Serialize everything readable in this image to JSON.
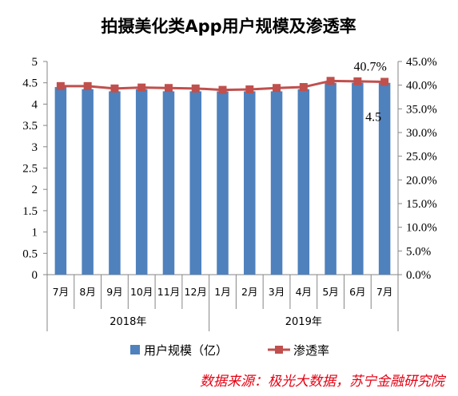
{
  "title": "拍摄美化类App用户规模及渗透率",
  "source": "数据来源：极光大数据，苏宁金融研究院",
  "colors": {
    "bar": "#4f81bd",
    "line": "#c0504d",
    "axis": "#868686",
    "source": "#e60012"
  },
  "chart_data": {
    "type": "bar",
    "categories": [
      "7月",
      "8月",
      "9月",
      "10月",
      "11月",
      "12月",
      "1月",
      "2月",
      "3月",
      "4月",
      "5月",
      "6月",
      "7月"
    ],
    "groups": [
      {
        "label": "2018年",
        "count": 6
      },
      {
        "label": "2019年",
        "count": 7
      }
    ],
    "series": [
      {
        "name": "用户规模（亿）",
        "type": "bar",
        "axis": "left",
        "values": [
          4.4,
          4.35,
          4.3,
          4.35,
          4.3,
          4.3,
          4.3,
          4.3,
          4.3,
          4.35,
          4.5,
          4.5,
          4.5
        ]
      },
      {
        "name": "渗透率",
        "type": "line",
        "axis": "right",
        "values": [
          39.8,
          39.8,
          39.3,
          39.5,
          39.4,
          39.3,
          39.0,
          39.1,
          39.4,
          39.6,
          40.9,
          40.8,
          40.7
        ]
      }
    ],
    "y_left": {
      "min": 0,
      "max": 5,
      "step": 0.5,
      "ticks": [
        "0",
        "0.5",
        "1",
        "1.5",
        "2",
        "2.5",
        "3",
        "3.5",
        "4",
        "4.5",
        "5"
      ]
    },
    "y_right": {
      "min": 0,
      "max": 45,
      "step": 5,
      "ticks": [
        "0.0%",
        "5.0%",
        "10.0%",
        "15.0%",
        "20.0%",
        "25.0%",
        "30.0%",
        "35.0%",
        "40.0%",
        "45.0%"
      ]
    },
    "data_labels": [
      {
        "series": 1,
        "index": 12,
        "text": "40.7%"
      },
      {
        "series": 0,
        "index": 12,
        "text": "4.5"
      }
    ],
    "legend": {
      "position": "bottom"
    },
    "grid": false
  }
}
